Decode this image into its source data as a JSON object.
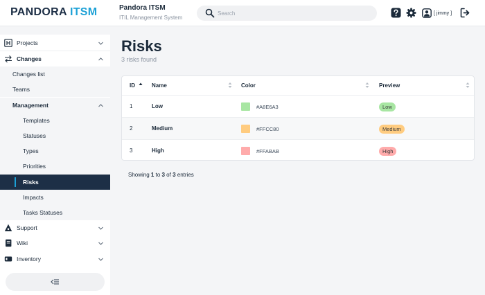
{
  "header": {
    "logo_main": "PANDORA",
    "logo_accent": " ITSM",
    "app_title": "Pandora ITSM",
    "app_subtitle": "ITIL Management System",
    "search_placeholder": "Search",
    "user_label": "[ jimmy ]",
    "icons": [
      "help-icon",
      "gear-icon",
      "user-icon",
      "logout-icon"
    ]
  },
  "sidebar": {
    "projects": "Projects",
    "changes": "Changes",
    "changes_list": "Changes list",
    "teams": "Teams",
    "management": "Management",
    "templates": "Templates",
    "statuses": "Statuses",
    "types": "Types",
    "priorities": "Priorities",
    "risks": "Risks",
    "impacts": "Impacts",
    "tasks_statuses": "Tasks Statuses",
    "support": "Support",
    "wiki": "Wiki",
    "inventory": "Inventory"
  },
  "main": {
    "title": "Risks",
    "subtitle": "3 risks found",
    "columns": {
      "id": "ID",
      "name": "Name",
      "color": "Color",
      "preview": "Preview"
    },
    "rows": [
      {
        "id": "1",
        "name": "Low",
        "hex": "#A8E6A3",
        "preview": "Low"
      },
      {
        "id": "2",
        "name": "Medium",
        "hex": "#FFCC80",
        "preview": "Medium"
      },
      {
        "id": "3",
        "name": "High",
        "hex": "#FFABAB",
        "preview": "High"
      }
    ],
    "footer": {
      "prefix": "Showing ",
      "from": "1",
      "mid1": " to ",
      "to": "3",
      "mid2": " of ",
      "total": "3",
      "suffix": " entries"
    }
  }
}
